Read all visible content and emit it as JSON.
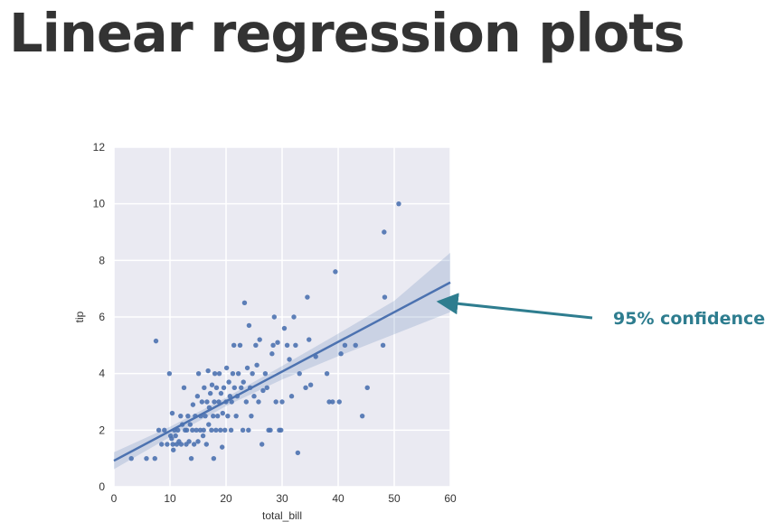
{
  "slide": {
    "title": "Linear regression plots"
  },
  "annotation": {
    "text": "95% confidence",
    "color": "#2e7d8f"
  },
  "chart_data": {
    "type": "scatter",
    "xlabel": "total_bill",
    "ylabel": "tip",
    "xlim": [
      0,
      60
    ],
    "ylim": [
      0,
      12
    ],
    "xticks": [
      0,
      10,
      20,
      30,
      40,
      50,
      60
    ],
    "yticks": [
      0,
      2,
      4,
      6,
      8,
      10,
      12
    ],
    "grid": true,
    "background": "#eaeaf2",
    "point_color": "#4c72b0",
    "regression": {
      "intercept": 0.92,
      "slope": 0.105
    },
    "confidence_band": {
      "x": [
        0,
        10,
        20,
        30,
        40,
        50,
        60
      ],
      "lower": [
        0.62,
        1.76,
        2.85,
        3.79,
        4.61,
        5.39,
        6.17
      ],
      "upper": [
        1.22,
        2.12,
        3.15,
        4.27,
        5.41,
        6.57,
        8.27
      ]
    },
    "points": [
      [
        3.1,
        1.0
      ],
      [
        5.8,
        1.0
      ],
      [
        7.3,
        1.0
      ],
      [
        7.5,
        5.15
      ],
      [
        8.0,
        2.0
      ],
      [
        8.5,
        1.5
      ],
      [
        9.0,
        2.0
      ],
      [
        9.5,
        1.5
      ],
      [
        9.9,
        4.0
      ],
      [
        10.1,
        1.8
      ],
      [
        10.3,
        1.7
      ],
      [
        10.4,
        2.6
      ],
      [
        10.5,
        1.5
      ],
      [
        10.6,
        1.3
      ],
      [
        10.8,
        2.0
      ],
      [
        11.0,
        1.8
      ],
      [
        11.2,
        1.5
      ],
      [
        11.4,
        2.0
      ],
      [
        11.6,
        1.6
      ],
      [
        11.9,
        2.5
      ],
      [
        12.0,
        1.5
      ],
      [
        12.2,
        2.2
      ],
      [
        12.5,
        3.5
      ],
      [
        12.7,
        2.0
      ],
      [
        12.9,
        1.5
      ],
      [
        13.0,
        2.0
      ],
      [
        13.2,
        2.5
      ],
      [
        13.4,
        1.6
      ],
      [
        13.6,
        2.2
      ],
      [
        13.8,
        1.0
      ],
      [
        14.0,
        2.0
      ],
      [
        14.1,
        2.9
      ],
      [
        14.3,
        1.5
      ],
      [
        14.5,
        2.5
      ],
      [
        14.7,
        2.0
      ],
      [
        14.9,
        3.2
      ],
      [
        15.0,
        1.6
      ],
      [
        15.1,
        4.0
      ],
      [
        15.4,
        2.0
      ],
      [
        15.5,
        2.5
      ],
      [
        15.7,
        3.0
      ],
      [
        15.9,
        1.8
      ],
      [
        16.0,
        2.0
      ],
      [
        16.1,
        3.5
      ],
      [
        16.3,
        2.5
      ],
      [
        16.5,
        1.5
      ],
      [
        16.6,
        3.0
      ],
      [
        16.8,
        4.1
      ],
      [
        16.9,
        2.2
      ],
      [
        17.0,
        2.8
      ],
      [
        17.2,
        3.3
      ],
      [
        17.4,
        2.0
      ],
      [
        17.5,
        3.6
      ],
      [
        17.7,
        2.5
      ],
      [
        17.8,
        1.0
      ],
      [
        17.9,
        3.0
      ],
      [
        18.0,
        4.0
      ],
      [
        18.2,
        2.0
      ],
      [
        18.3,
        3.5
      ],
      [
        18.5,
        2.5
      ],
      [
        18.7,
        3.0
      ],
      [
        18.8,
        4.0
      ],
      [
        19.0,
        2.0
      ],
      [
        19.1,
        3.3
      ],
      [
        19.3,
        1.4
      ],
      [
        19.4,
        2.6
      ],
      [
        19.6,
        3.5
      ],
      [
        19.8,
        2.0
      ],
      [
        20.0,
        3.0
      ],
      [
        20.1,
        4.2
      ],
      [
        20.3,
        2.5
      ],
      [
        20.5,
        3.7
      ],
      [
        20.7,
        3.2
      ],
      [
        20.9,
        2.0
      ],
      [
        21.0,
        3.0
      ],
      [
        21.2,
        4.0
      ],
      [
        21.4,
        5.0
      ],
      [
        21.5,
        3.5
      ],
      [
        21.8,
        2.5
      ],
      [
        22.0,
        3.2
      ],
      [
        22.2,
        4.0
      ],
      [
        22.5,
        5.0
      ],
      [
        22.7,
        3.5
      ],
      [
        23.0,
        2.0
      ],
      [
        23.1,
        3.7
      ],
      [
        23.3,
        6.5
      ],
      [
        23.6,
        3.0
      ],
      [
        23.8,
        4.2
      ],
      [
        24.0,
        2.0
      ],
      [
        24.1,
        5.7
      ],
      [
        24.3,
        3.5
      ],
      [
        24.5,
        2.5
      ],
      [
        24.7,
        4.0
      ],
      [
        25.0,
        3.2
      ],
      [
        25.3,
        5.0
      ],
      [
        25.5,
        4.3
      ],
      [
        25.8,
        3.0
      ],
      [
        26.0,
        5.2
      ],
      [
        26.4,
        1.5
      ],
      [
        26.6,
        3.4
      ],
      [
        27.0,
        4.0
      ],
      [
        27.3,
        3.5
      ],
      [
        27.6,
        2.0
      ],
      [
        27.9,
        2.0
      ],
      [
        28.2,
        4.7
      ],
      [
        28.4,
        5.0
      ],
      [
        28.6,
        6.0
      ],
      [
        28.9,
        3.0
      ],
      [
        29.2,
        5.1
      ],
      [
        29.5,
        2.0
      ],
      [
        29.8,
        2.0
      ],
      [
        30.0,
        3.0
      ],
      [
        30.4,
        5.6
      ],
      [
        30.9,
        5.0
      ],
      [
        31.3,
        4.5
      ],
      [
        31.7,
        3.2
      ],
      [
        32.1,
        6.0
      ],
      [
        32.4,
        5.0
      ],
      [
        32.8,
        1.2
      ],
      [
        33.1,
        4.0
      ],
      [
        34.2,
        3.5
      ],
      [
        34.5,
        6.7
      ],
      [
        34.8,
        5.2
      ],
      [
        35.1,
        3.6
      ],
      [
        36.0,
        4.6
      ],
      [
        38.0,
        4.0
      ],
      [
        38.4,
        3.0
      ],
      [
        39.0,
        3.0
      ],
      [
        39.5,
        7.6
      ],
      [
        40.2,
        3.0
      ],
      [
        40.5,
        4.7
      ],
      [
        41.2,
        5.0
      ],
      [
        43.1,
        5.0
      ],
      [
        44.3,
        2.5
      ],
      [
        45.2,
        3.5
      ],
      [
        48.0,
        5.0
      ],
      [
        48.2,
        9.0
      ],
      [
        48.3,
        6.7
      ],
      [
        50.8,
        10.0
      ]
    ]
  }
}
